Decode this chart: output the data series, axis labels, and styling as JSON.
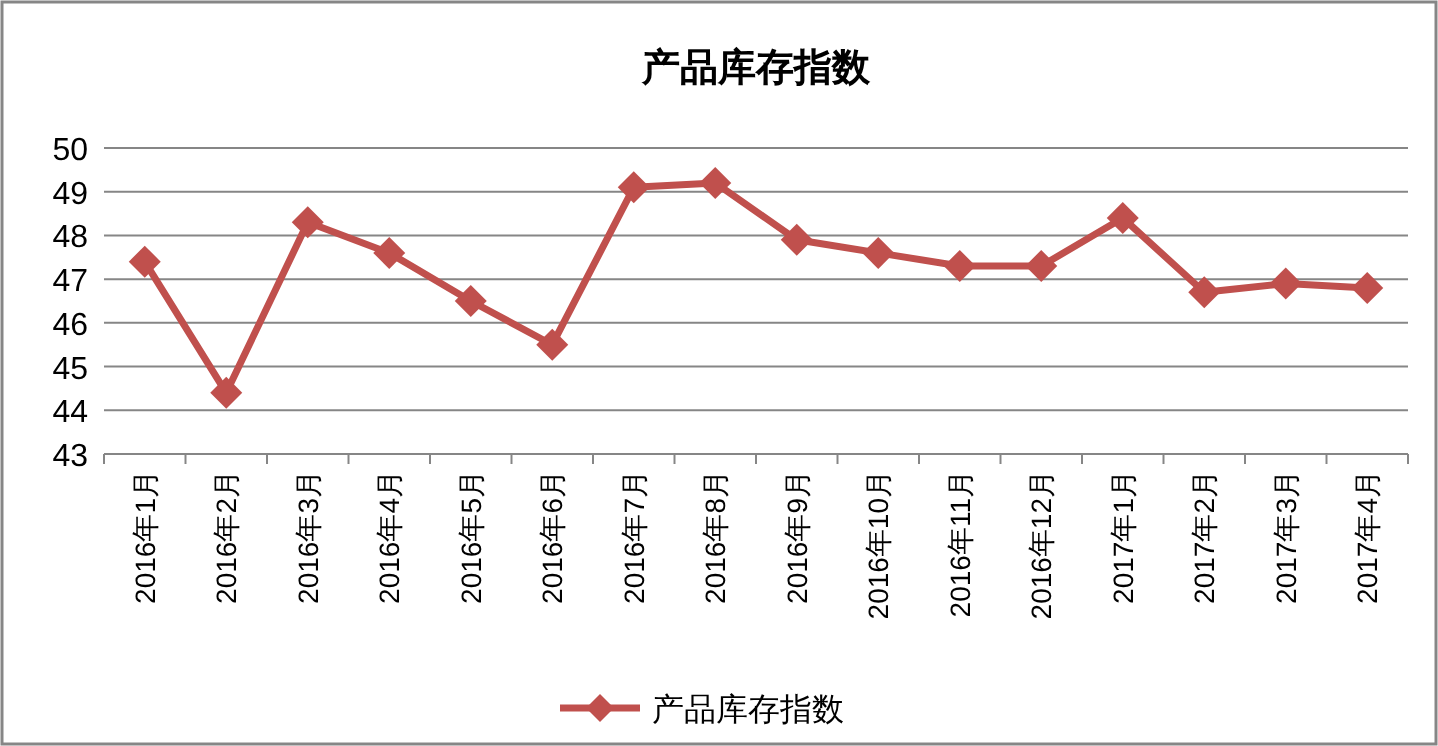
{
  "chart_data": {
    "type": "line",
    "title": "产品库存指数",
    "categories": [
      "2016年1月",
      "2016年2月",
      "2016年3月",
      "2016年4月",
      "2016年5月",
      "2016年6月",
      "2016年7月",
      "2016年8月",
      "2016年9月",
      "2016年10月",
      "2016年11月",
      "2016年12月",
      "2017年1月",
      "2017年2月",
      "2017年3月",
      "2017年4月"
    ],
    "series": [
      {
        "name": "产品库存指数",
        "color": "#c0504d",
        "values": [
          47.4,
          44.4,
          48.3,
          47.6,
          46.5,
          45.5,
          49.1,
          49.2,
          47.9,
          47.6,
          47.3,
          47.3,
          48.4,
          46.7,
          46.9,
          46.8
        ]
      }
    ],
    "ylim": [
      43,
      50
    ],
    "yticks": [
      43,
      44,
      45,
      46,
      47,
      48,
      49,
      50
    ],
    "grid": "y",
    "legend": "bottom",
    "marker": "diamond",
    "line_style": "solid"
  }
}
